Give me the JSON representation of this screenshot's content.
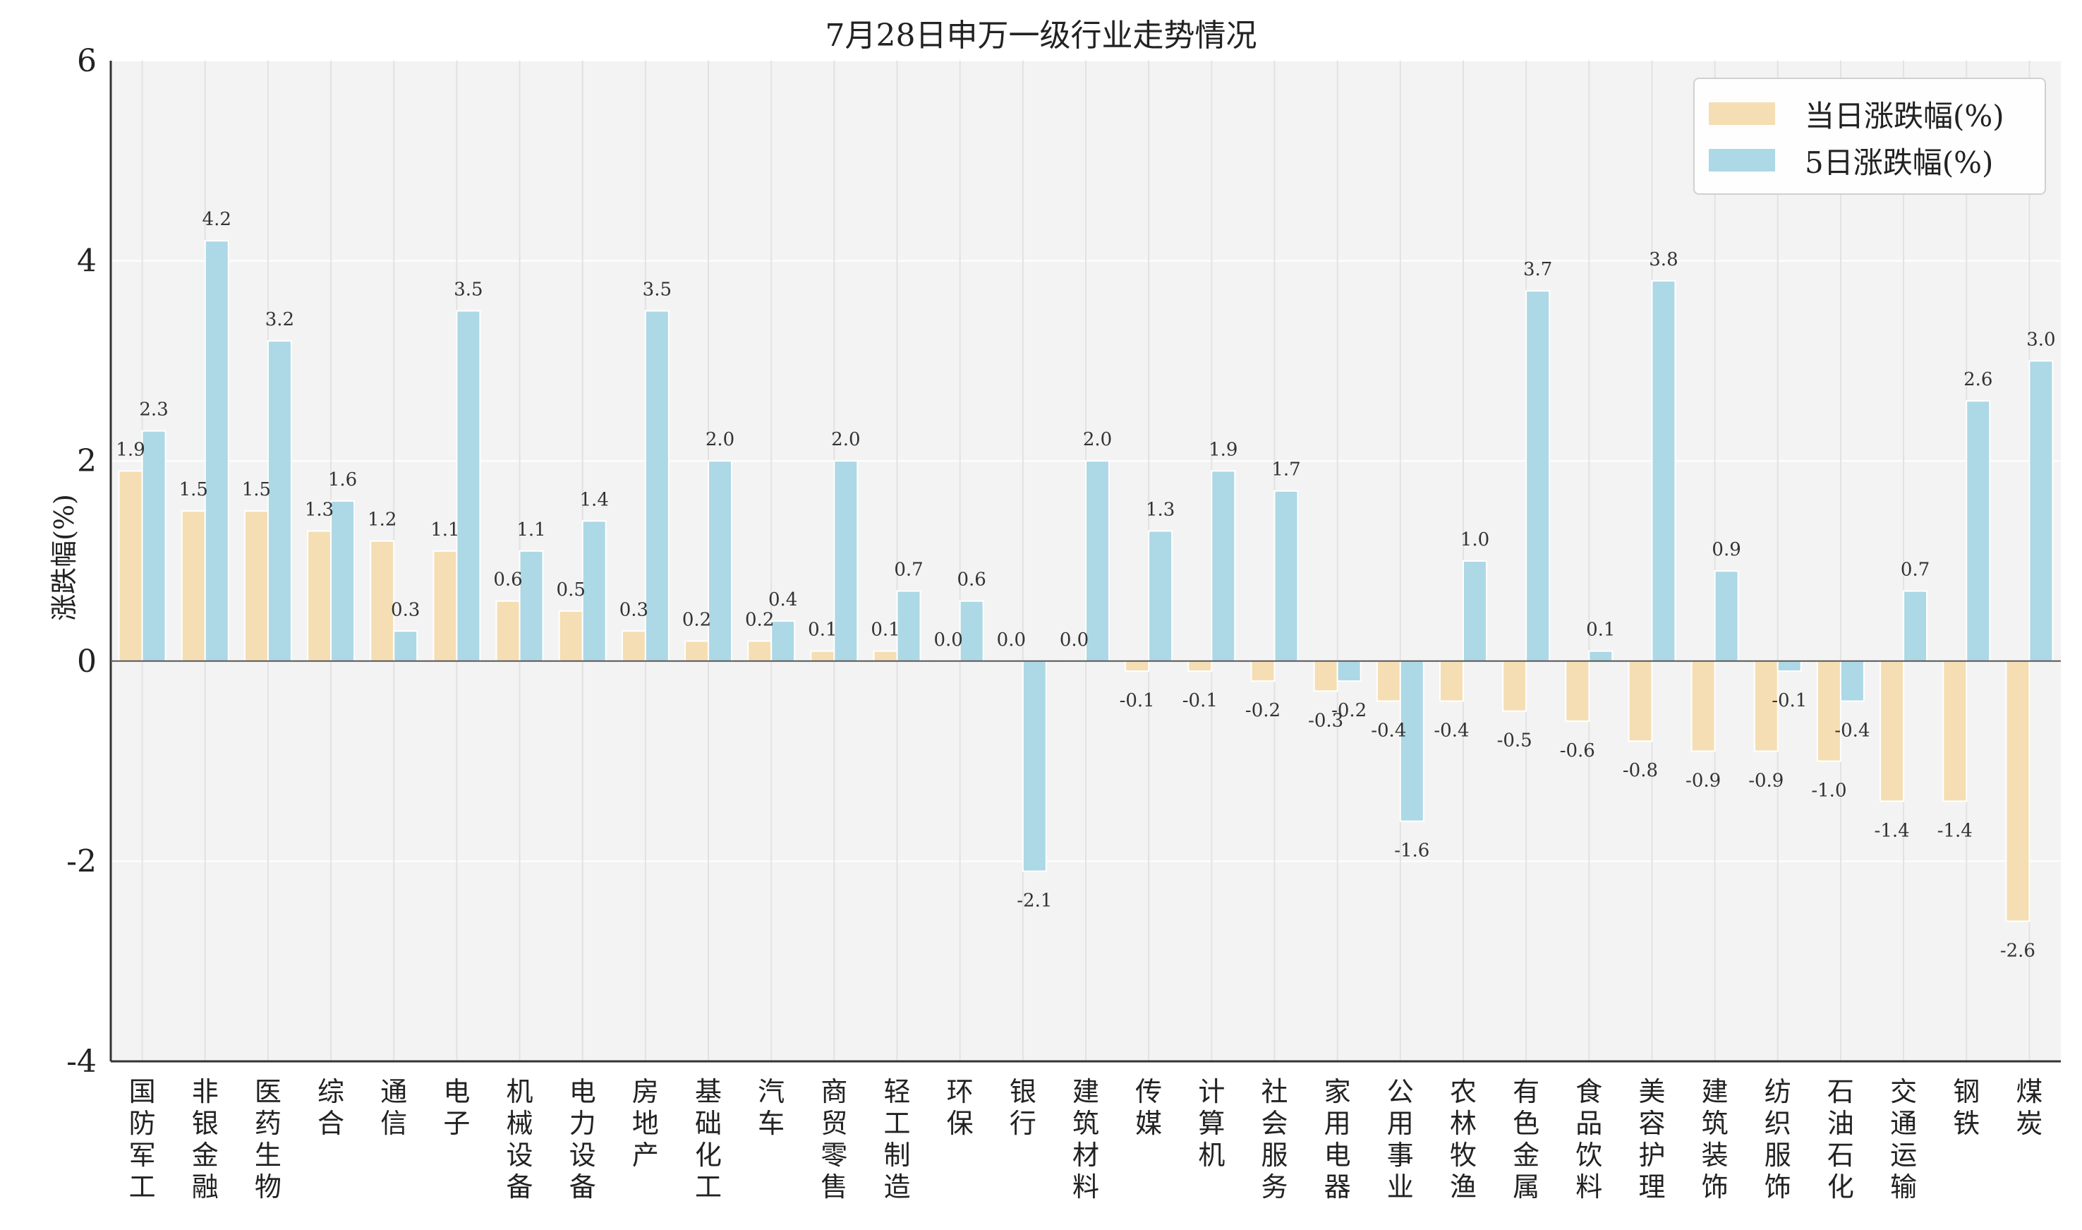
{
  "chart_data": {
    "type": "bar",
    "title": "7月28日申万一级行业走势情况",
    "xlabel": "",
    "ylabel": "涨跌幅(%)",
    "ylim": [
      -4,
      6
    ],
    "yticks": [
      -4,
      -2,
      0,
      2,
      4,
      6
    ],
    "grid": true,
    "legend_position": "top-right",
    "categories": [
      "国防军工",
      "非银金融",
      "医药生物",
      "综合",
      "通信",
      "电子",
      "机械设备",
      "电力设备",
      "房地产",
      "基础化工",
      "汽车",
      "商贸零售",
      "轻工制造",
      "环保",
      "银行",
      "建筑材料",
      "传媒",
      "计算机",
      "社会服务",
      "家用电器",
      "公用事业",
      "农林牧渔",
      "有色金属",
      "食品饮料",
      "美容护理",
      "建筑装饰",
      "纺织服饰",
      "石油石化",
      "交通运输",
      "钢铁",
      "煤炭"
    ],
    "series": [
      {
        "name": "当日涨跌幅(%)",
        "color": "#f5deb3",
        "values": [
          1.9,
          1.5,
          1.5,
          1.3,
          1.2,
          1.1,
          0.6,
          0.5,
          0.3,
          0.2,
          0.2,
          0.1,
          0.1,
          0.0,
          0.0,
          0.0,
          -0.1,
          -0.1,
          -0.2,
          -0.3,
          -0.4,
          -0.4,
          -0.5,
          -0.6,
          -0.8,
          -0.9,
          -0.9,
          -1.0,
          -1.4,
          -1.4,
          -2.6
        ]
      },
      {
        "name": "5日涨跌幅(%)",
        "color": "#add8e6",
        "values": [
          2.3,
          4.2,
          3.2,
          1.6,
          0.3,
          3.5,
          1.1,
          1.4,
          3.5,
          2.0,
          0.4,
          2.0,
          0.7,
          0.6,
          -2.1,
          2.0,
          1.3,
          1.9,
          1.7,
          -0.2,
          -1.6,
          1.0,
          3.7,
          0.1,
          3.8,
          0.9,
          -0.1,
          -0.4,
          0.7,
          2.6,
          3.0
        ]
      }
    ]
  }
}
